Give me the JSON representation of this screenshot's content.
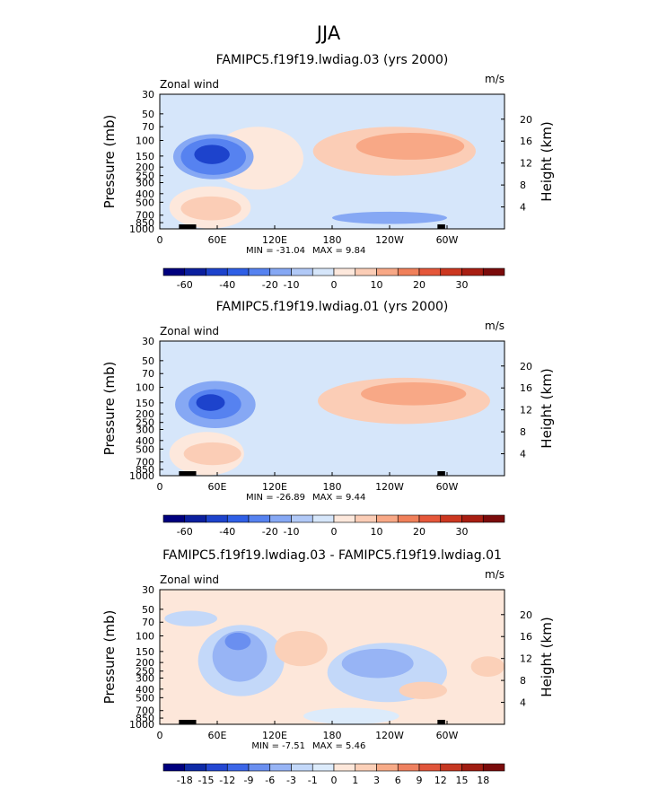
{
  "figure_title": "JJA",
  "chart_data": [
    {
      "type": "heatmap",
      "title": "FAMIPC5.f19f19.lwdiag.03 (yrs 2000)",
      "variable_label": "Zonal wind",
      "units_label": "m/s",
      "xlabel": "",
      "ylabel": "Pressure (mb)",
      "right_ylabel": "Height (km)",
      "x_ticks": [
        "0",
        "60E",
        "120E",
        "180",
        "120W",
        "60W"
      ],
      "y_ticks": [
        "30",
        "50",
        "70",
        "100",
        "150",
        "200",
        "250",
        "300",
        "400",
        "500",
        "700",
        "850",
        "1000"
      ],
      "right_ticks": [
        "20",
        "16",
        "12",
        "8",
        "4"
      ],
      "min_label": "MIN = -31.04",
      "max_label": "MAX =  9.84",
      "colorbar_labels": [
        "-60",
        "-40",
        "-20",
        "-10",
        "0",
        "10",
        "20",
        "30"
      ],
      "background_level": "-5",
      "regions": [
        {
          "level": "0",
          "lon": [
            55,
            150
          ],
          "p": [
            70,
            360
          ]
        },
        {
          "level": "-10",
          "lon": [
            14,
            98
          ],
          "p": [
            85,
            275
          ]
        },
        {
          "level": "-20",
          "lon": [
            22,
            90
          ],
          "p": [
            95,
            245
          ]
        },
        {
          "level": "-30",
          "lon": [
            36,
            73
          ],
          "p": [
            112,
            185
          ]
        },
        {
          "level": "5",
          "lon": [
            160,
            330
          ],
          "p": [
            70,
            250
          ]
        },
        {
          "level": "10",
          "lon": [
            205,
            318
          ],
          "p": [
            82,
            165
          ]
        },
        {
          "level": "0",
          "lon": [
            10,
            95
          ],
          "p": [
            330,
            990
          ]
        },
        {
          "level": "5",
          "lon": [
            22,
            85
          ],
          "p": [
            430,
            800
          ]
        },
        {
          "level": "-10",
          "lon": [
            180,
            300
          ],
          "p": [
            640,
            880
          ]
        }
      ]
    },
    {
      "type": "heatmap",
      "title": "FAMIPC5.f19f19.lwdiag.01 (yrs 2000)",
      "variable_label": "Zonal wind",
      "units_label": "m/s",
      "xlabel": "",
      "ylabel": "Pressure (mb)",
      "right_ylabel": "Height (km)",
      "x_ticks": [
        "0",
        "60E",
        "120E",
        "180",
        "120W",
        "60W"
      ],
      "y_ticks": [
        "30",
        "50",
        "70",
        "100",
        "150",
        "200",
        "250",
        "300",
        "400",
        "500",
        "700",
        "850",
        "1000"
      ],
      "right_ticks": [
        "20",
        "16",
        "12",
        "8",
        "4"
      ],
      "min_label": "MIN = -26.89",
      "max_label": "MAX =  9.44",
      "colorbar_labels": [
        "-60",
        "-40",
        "-20",
        "-10",
        "0",
        "10",
        "20",
        "30"
      ],
      "background_level": "-5",
      "regions": [
        {
          "level": "-10",
          "lon": [
            16,
            100
          ],
          "p": [
            85,
            290
          ]
        },
        {
          "level": "-20",
          "lon": [
            30,
            85
          ],
          "p": [
            105,
            230
          ]
        },
        {
          "level": "-30",
          "lon": [
            38,
            68
          ],
          "p": [
            120,
            185
          ]
        },
        {
          "level": "5",
          "lon": [
            165,
            345
          ],
          "p": [
            78,
            260
          ]
        },
        {
          "level": "10",
          "lon": [
            210,
            320
          ],
          "p": [
            88,
            160
          ]
        },
        {
          "level": "0",
          "lon": [
            10,
            88
          ],
          "p": [
            320,
            990
          ]
        },
        {
          "level": "5",
          "lon": [
            25,
            85
          ],
          "p": [
            420,
            760
          ]
        }
      ]
    },
    {
      "type": "heatmap",
      "title": "FAMIPC5.f19f19.lwdiag.03 - FAMIPC5.f19f19.lwdiag.01",
      "variable_label": "Zonal wind",
      "units_label": "m/s",
      "xlabel": "",
      "ylabel": "Pressure (mb)",
      "right_ylabel": "Height (km)",
      "x_ticks": [
        "0",
        "60E",
        "120E",
        "180",
        "120W",
        "60W"
      ],
      "y_ticks": [
        "30",
        "50",
        "70",
        "100",
        "150",
        "200",
        "250",
        "300",
        "400",
        "500",
        "700",
        "850",
        "1000"
      ],
      "right_ticks": [
        "20",
        "16",
        "12",
        "8",
        "4"
      ],
      "min_label": "MIN = -7.51",
      "max_label": "MAX =  5.46",
      "colorbar_labels": [
        "-18",
        "-15",
        "-12",
        "-9",
        "-6",
        "-3",
        "-1",
        "0",
        "1",
        "3",
        "6",
        "9",
        "12",
        "15",
        "18"
      ],
      "background_level": "1",
      "regions": [
        {
          "level": "-1",
          "lon": [
            40,
            130
          ],
          "p": [
            75,
            480
          ]
        },
        {
          "level": "-3",
          "lon": [
            55,
            112
          ],
          "p": [
            88,
            330
          ]
        },
        {
          "level": "-6",
          "lon": [
            68,
            95
          ],
          "p": [
            92,
            145
          ]
        },
        {
          "level": "-1",
          "lon": [
            175,
            300
          ],
          "p": [
            120,
            560
          ]
        },
        {
          "level": "-3",
          "lon": [
            190,
            265
          ],
          "p": [
            140,
            300
          ]
        },
        {
          "level": "-1",
          "lon": [
            5,
            60
          ],
          "p": [
            52,
            78
          ]
        },
        {
          "level": "3",
          "lon": [
            120,
            175
          ],
          "p": [
            88,
            220
          ]
        },
        {
          "level": "3",
          "lon": [
            250,
            300
          ],
          "p": [
            330,
            520
          ]
        },
        {
          "level": "3",
          "lon": [
            325,
            360
          ],
          "p": [
            170,
            290
          ]
        },
        {
          "level": "0",
          "lon": [
            150,
            250
          ],
          "p": [
            650,
            1000
          ]
        }
      ]
    }
  ]
}
